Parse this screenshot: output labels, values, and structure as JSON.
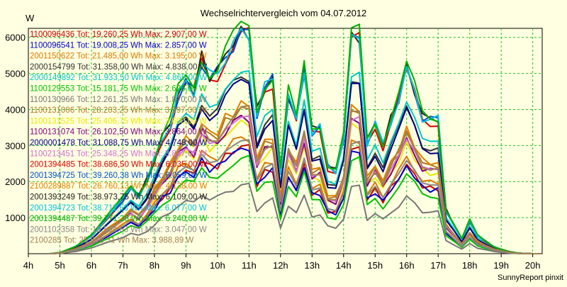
{
  "chart_data": {
    "type": "line",
    "title": "Wechselrichtervergleich vom 04.07.2012",
    "ylabel": "W",
    "credit": "SunnyReport pinxit",
    "ylim": [
      0,
      6250
    ],
    "yticks": [
      1000,
      2000,
      3000,
      4000,
      5000,
      6000
    ],
    "xlim": [
      4,
      20.3
    ],
    "xticks": [
      4,
      5,
      6,
      7,
      8,
      9,
      10,
      11,
      12,
      13,
      14,
      15,
      16,
      17,
      18,
      19,
      20
    ],
    "xtick_labels": [
      "4h",
      "5h",
      "6h",
      "7h",
      "8h",
      "9h",
      "10h",
      "11h",
      "12h",
      "13h",
      "14h",
      "15h",
      "16h",
      "17h",
      "18h",
      "19h",
      "20h"
    ],
    "grid": true,
    "legend_position": "top-left",
    "series": [
      {
        "name": "1100096436",
        "label": "1100096436 Tot: 19.260,25 Wh Max: 2.907,00 W",
        "color": "#cc0000",
        "scale": 0.49
      },
      {
        "name": "1100096541",
        "label": "1100096541 Tot: 19.008,25 Wh Max: 2.857,00 W",
        "color": "#0000cc",
        "scale": 0.48
      },
      {
        "name": "2001150622",
        "label": "2001150622 Tot: 21.485,00 Wh Max: 3.195,00 W",
        "color": "#e07800",
        "scale": 0.53
      },
      {
        "name": "2000154799",
        "label": "2000154799 Tot: 31.358,00 Wh Max: 4.838,00 W",
        "color": "#333333",
        "scale": 0.8
      },
      {
        "name": "2000149892",
        "label": "2000149892 Tot: 31.933,50 Wh Max: 4.865,00 W",
        "color": "#00c8c8",
        "scale": 0.82
      },
      {
        "name": "1100129553",
        "label": "1100129553 Tot: 15.181,75 Wh Max: 2.626,00 W",
        "color": "#00c000",
        "scale": 0.43
      },
      {
        "name": "1100130966",
        "label": "1100130966 Tot: 12.261,25 Wh Max: 1.870,00 W",
        "color": "#777777",
        "scale": 0.31
      },
      {
        "name": "1100131006",
        "label": "1100131006 Tot: 28.203,25 Wh Max: 3.997,00 W",
        "color": "#b07a28",
        "scale": 0.66
      },
      {
        "name": "1100131525",
        "label": "1100131525 Tot: 25.406,75 Wh Max: 3.600,00 W",
        "color": "#e8e800",
        "scale": 0.6
      },
      {
        "name": "1100131074",
        "label": "1100131074 Tot: 26.102,50 Wh Max: 3.864,00 W",
        "color": "#800080",
        "scale": 0.62
      },
      {
        "name": "2000001478",
        "label": "2000001478 Tot: 31.088,75 Wh Max: 4.748,00 W",
        "color": "#000080",
        "scale": 0.78
      },
      {
        "name": "1100213451",
        "label": "1100213451 Tot: 25.348,25 Wh Max: 3.837,00 W",
        "color": "#d070d0",
        "scale": 0.61
      },
      {
        "name": "2001394485",
        "label": "2001394485 Tot: 38.686,50 Wh Max: 6.035,00 W",
        "color": "#dd0000",
        "scale": 0.99
      },
      {
        "name": "2001394725",
        "label": "2001394725 Tot: 39.260,38 Wh Max: 6.059,00 W",
        "color": "#0050d0",
        "scale": 1.0
      },
      {
        "name": "2100289887",
        "label": "2100289887 Tot: 26.760,13 Wh Max: 4.138,00 W",
        "color": "#e08000",
        "scale": 0.68
      },
      {
        "name": "2001393249",
        "label": "2001393249 Tot: 38.973,75 Wh Max: 6.109,00 W",
        "color": "#222222",
        "scale": 1.01
      },
      {
        "name": "2001394723",
        "label": "2001394723 Tot: 38.711,63 Wh Max: 6.077,00 W",
        "color": "#00c0e0",
        "scale": 1.0
      },
      {
        "name": "2001394487",
        "label": "2001394487 Tot: 39.771,38 Wh Max: 6.240,00 W",
        "color": "#00b000",
        "scale": 1.03
      },
      {
        "name": "2001102358",
        "label": "2001102358 Tot: 19.594,63 Wh Max: 3.047,00 W",
        "color": "#888888",
        "scale": 0.5
      },
      {
        "name": "2100285xxx",
        "label": "2100285 Tot: 25.618,31 Wh Max: 3.988,89 W",
        "color": "#a08050",
        "scale": 0.65
      }
    ],
    "base_profile": {
      "x": [
        4.7,
        5.0,
        5.5,
        6.0,
        6.5,
        7.0,
        7.25,
        7.5,
        7.75,
        8.0,
        8.25,
        8.5,
        8.75,
        9.0,
        9.25,
        9.5,
        9.75,
        10.0,
        10.25,
        10.5,
        10.75,
        11.0,
        11.25,
        11.5,
        11.75,
        12.0,
        12.25,
        12.5,
        12.75,
        13.0,
        13.25,
        13.5,
        13.75,
        14.0,
        14.25,
        14.5,
        14.75,
        15.0,
        15.25,
        15.5,
        15.75,
        16.0,
        16.25,
        16.5,
        16.75,
        17.0,
        17.25,
        17.5,
        17.75,
        18.0,
        18.25,
        18.5,
        18.75,
        19.0,
        19.25,
        19.5,
        19.75,
        20.0,
        20.25
      ],
      "y": [
        0,
        30,
        200,
        500,
        1000,
        1500,
        1800,
        1600,
        2000,
        2600,
        3200,
        3600,
        4400,
        4700,
        4500,
        5350,
        4900,
        5000,
        5500,
        5800,
        6050,
        6100,
        3900,
        4600,
        4800,
        2300,
        4400,
        3600,
        5100,
        3400,
        3500,
        2400,
        2300,
        3200,
        5850,
        6000,
        3100,
        3600,
        3000,
        3700,
        4300,
        5000,
        4500,
        3800,
        3700,
        3700,
        1200,
        800,
        400,
        900,
        500,
        350,
        200,
        120,
        60,
        20,
        5,
        0,
        0
      ]
    }
  }
}
